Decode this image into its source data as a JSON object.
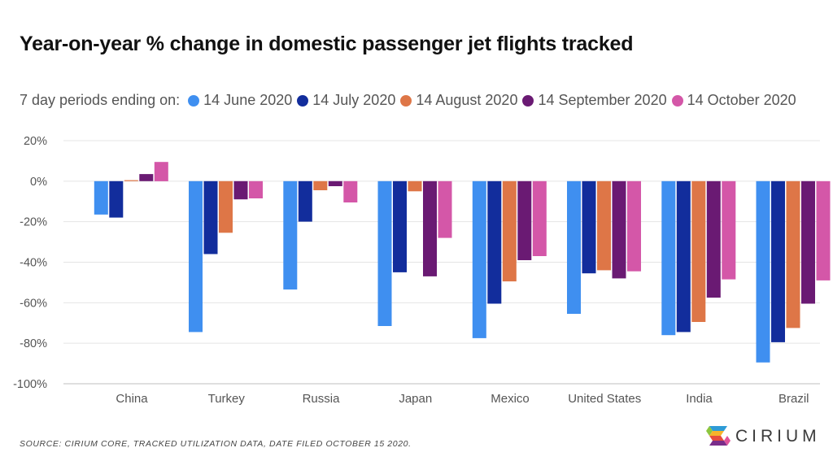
{
  "title": "Year-on-year % change in domestic passenger jet flights tracked",
  "legend": {
    "prefix": "7 day periods ending on:"
  },
  "source": "SOURCE: CIRIUM CORE, TRACKED UTILIZATION DATA, DATE FILED OCTOBER 15 2020.",
  "brand": {
    "name": "CIRIUM",
    "logo_colors": [
      "#2e9bd6",
      "#8dc63f",
      "#f7b32b",
      "#e84c3d",
      "#7a2d8a",
      "#e0529c"
    ]
  },
  "chart_data": {
    "type": "bar",
    "title": "Year-on-year % change in domestic passenger jet flights tracked",
    "xlabel": "",
    "ylabel": "",
    "ylim": [
      -100,
      20
    ],
    "yticks": [
      20,
      0,
      -20,
      -40,
      -60,
      -80,
      -100
    ],
    "ytick_labels": [
      "20%",
      "0%",
      "-20%",
      "-40%",
      "-60%",
      "-80%",
      "-100%"
    ],
    "grid": true,
    "legend_position": "top",
    "categories": [
      "China",
      "Turkey",
      "Russia",
      "Japan",
      "Mexico",
      "United States",
      "India",
      "Brazil"
    ],
    "series": [
      {
        "name": "14 June 2020",
        "color": "#3f8ff0",
        "values": [
          -16.5,
          -74.5,
          -53.5,
          -71.5,
          -77.5,
          -65.5,
          -76,
          -89.5
        ]
      },
      {
        "name": "14 July 2020",
        "color": "#122d9c",
        "values": [
          -18,
          -36,
          -20,
          -45,
          -60.5,
          -45.5,
          -74.5,
          -79.5
        ]
      },
      {
        "name": "14 August 2020",
        "color": "#de7647",
        "values": [
          0.5,
          -25.5,
          -4.5,
          -5,
          -49.5,
          -44,
          -69.5,
          -72.5
        ]
      },
      {
        "name": "14 September 2020",
        "color": "#6a1a73",
        "values": [
          3.5,
          -9,
          -2.5,
          -47,
          -39,
          -48,
          -57.5,
          -60.5
        ]
      },
      {
        "name": "14 October 2020",
        "color": "#d457a8",
        "values": [
          9.5,
          -8.5,
          -10.5,
          -28,
          -37,
          -44.5,
          -48.5,
          -49
        ]
      }
    ]
  }
}
